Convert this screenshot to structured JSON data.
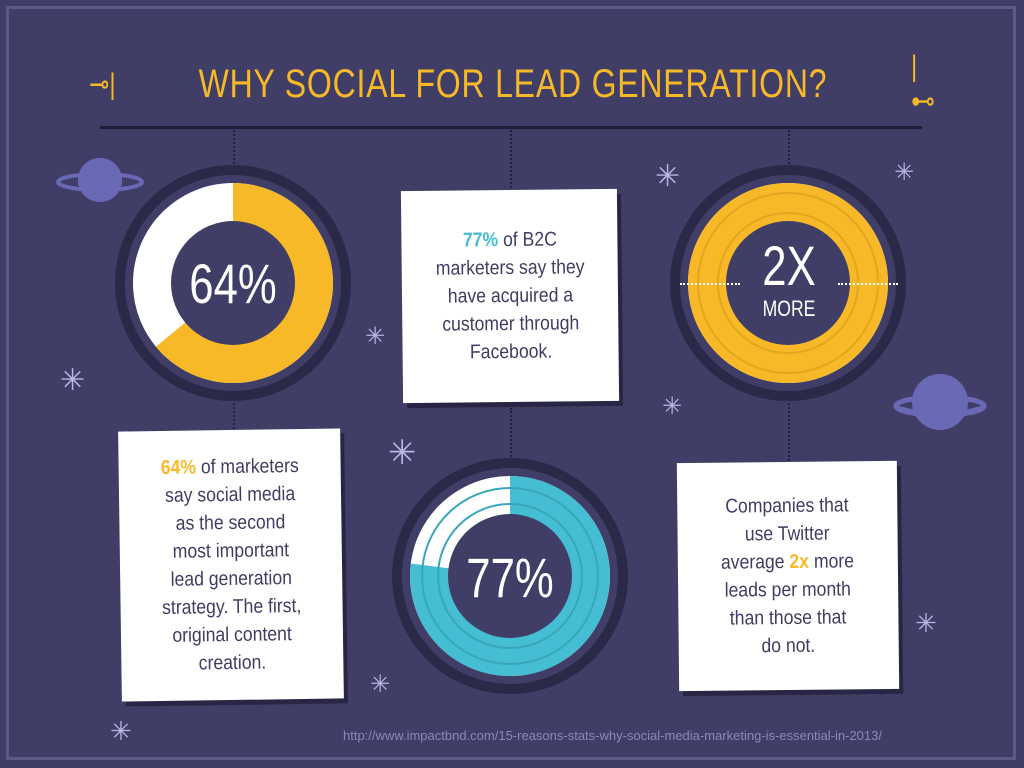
{
  "header": {
    "title": "WHY SOCIAL FOR LEAD GENERATION?",
    "ornament_left": "⊸|",
    "ornament_right": "|⊷"
  },
  "stats": {
    "stat1": {
      "value": "64%",
      "fraction": 0.64,
      "color": "#f7b928"
    },
    "stat2": {
      "value": "77%",
      "fraction": 0.77,
      "color": "#45bdd2"
    },
    "stat3": {
      "value": "2X",
      "sub": "MORE",
      "fraction": 1.0,
      "color": "#f7b928"
    }
  },
  "cards": {
    "facebook": {
      "highlight": "77%",
      "lines": [
        "of B2C",
        "marketers say they",
        "have acquired a",
        "customer through",
        "Facebook."
      ]
    },
    "marketers": {
      "highlight": "64%",
      "lines": [
        "of marketers",
        "say social media",
        "as the second",
        "most important",
        "lead generation",
        "strategy. The first,",
        "original content",
        "creation."
      ]
    },
    "twitter": {
      "highlight": "2x",
      "lines": [
        "Companies that",
        "use Twitter",
        "average",
        "more",
        "leads per month",
        "than those that",
        "do not."
      ]
    }
  },
  "source": "http://www.impactbnd.com/15-reasons-stats-why-social-media-marketing-is-essential-in-2013/",
  "colors": {
    "background": "#403e66",
    "gold": "#f7b928",
    "teal": "#45bdd2",
    "dark_ring": "#2a2948",
    "planet": "#6a69b5"
  }
}
